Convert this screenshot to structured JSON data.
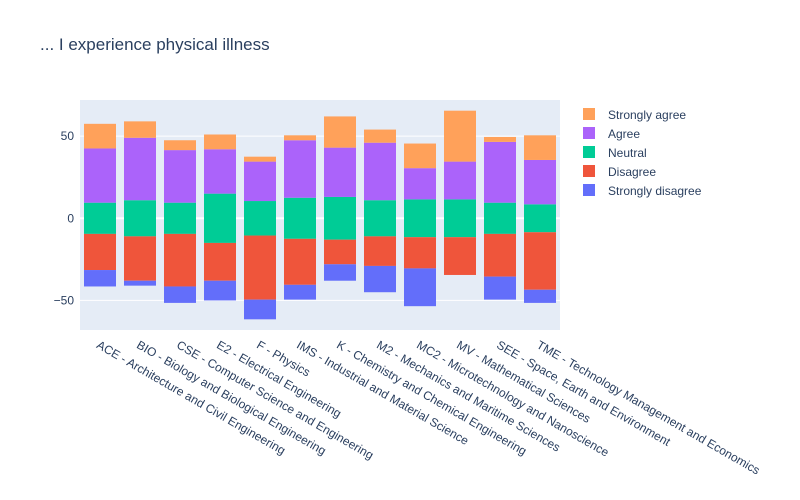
{
  "chart_data": {
    "type": "bar",
    "title": "... I experience physical illness",
    "xlabel": "",
    "ylabel": "",
    "ylim": [
      -68,
      72
    ],
    "yticks": [
      -50,
      0,
      50
    ],
    "grid": true,
    "legend_position": "top-right",
    "categories": [
      "ACE - Architecture and Civil Engineering",
      "BIO - Biology and Biological Engineering",
      "CSE - Computer Science and Engineering",
      "E2 - Electrical Engineering",
      "F - Physics",
      "IMS - Industrial and Material Science",
      "K - Chemistry and Chemical Engineering",
      "M2 - Mechanics and Maritime Sciences",
      "MC2 - Microtechnology and Nanoscience",
      "MV - Mathematical Sciences",
      "SEE - Space, Earth and Environment",
      "TME - Technology Management and Economics"
    ],
    "series": [
      {
        "name": "Strongly agree",
        "color": "#FFA15A",
        "stack": "positive",
        "values": [
          15,
          10,
          6,
          9,
          3,
          3,
          19,
          8,
          15,
          31,
          3,
          15
        ]
      },
      {
        "name": "Agree",
        "color": "#AB63FA",
        "stack": "positive",
        "values": [
          33,
          38,
          32,
          27,
          24,
          35,
          30,
          35,
          19,
          23,
          37,
          27
        ]
      },
      {
        "name": "Neutral",
        "color": "#00CC96",
        "stack": "split",
        "values": [
          19,
          22,
          19,
          30,
          21,
          25,
          26,
          22,
          23,
          23,
          19,
          17
        ]
      },
      {
        "name": "Disagree",
        "color": "#EF553B",
        "stack": "negative",
        "values": [
          22,
          27,
          32,
          23,
          39,
          28,
          15,
          18,
          19,
          23,
          26,
          35
        ]
      },
      {
        "name": "Strongly disagree",
        "color": "#636EFA",
        "stack": "negative",
        "values": [
          10,
          3,
          10,
          12,
          12,
          9,
          10,
          16,
          23,
          0,
          14,
          8
        ]
      }
    ]
  }
}
